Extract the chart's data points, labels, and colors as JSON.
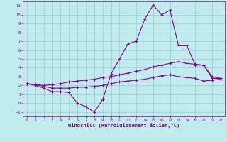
{
  "xlabel": "Windchill (Refroidissement éolien,°C)",
  "x_ticks": [
    0,
    1,
    2,
    3,
    4,
    5,
    6,
    7,
    8,
    9,
    10,
    11,
    12,
    13,
    14,
    15,
    16,
    17,
    18,
    19,
    20,
    21,
    22,
    23
  ],
  "y_ticks": [
    -1,
    0,
    1,
    2,
    3,
    4,
    5,
    6,
    7,
    8,
    9,
    10,
    11
  ],
  "xlim": [
    -0.5,
    23.5
  ],
  "ylim": [
    -1.5,
    11.5
  ],
  "background_color": "#c0ecee",
  "grid_color": "#98ccd4",
  "line_color": "#880088",
  "curve1_x": [
    0,
    1,
    2,
    3,
    4,
    5,
    6,
    7,
    8,
    9,
    10,
    11,
    12,
    13,
    14,
    15,
    16,
    17,
    18,
    19,
    20,
    21,
    22,
    23
  ],
  "curve1_y": [
    2.2,
    2.0,
    1.7,
    1.3,
    1.3,
    1.2,
    0.0,
    -0.4,
    -1.0,
    0.4,
    3.3,
    5.0,
    6.7,
    7.0,
    9.5,
    11.1,
    10.0,
    10.5,
    6.5,
    6.5,
    4.3,
    4.3,
    2.8,
    2.8
  ],
  "curve2_x": [
    0,
    1,
    2,
    3,
    4,
    5,
    6,
    7,
    8,
    9,
    10,
    11,
    12,
    13,
    14,
    15,
    16,
    17,
    18,
    19,
    20,
    21,
    22,
    23
  ],
  "curve2_y": [
    2.2,
    2.1,
    2.0,
    2.1,
    2.2,
    2.4,
    2.5,
    2.6,
    2.7,
    2.9,
    3.0,
    3.2,
    3.4,
    3.6,
    3.8,
    4.1,
    4.3,
    4.5,
    4.7,
    4.5,
    4.4,
    4.3,
    3.0,
    2.8
  ],
  "curve3_x": [
    0,
    1,
    2,
    3,
    4,
    5,
    6,
    7,
    8,
    9,
    10,
    11,
    12,
    13,
    14,
    15,
    16,
    17,
    18,
    19,
    20,
    21,
    22,
    23
  ],
  "curve3_y": [
    2.2,
    2.1,
    1.9,
    1.7,
    1.7,
    1.7,
    1.8,
    1.8,
    1.9,
    2.0,
    2.2,
    2.4,
    2.5,
    2.6,
    2.7,
    2.9,
    3.1,
    3.2,
    3.0,
    2.9,
    2.8,
    2.5,
    2.6,
    2.7
  ]
}
